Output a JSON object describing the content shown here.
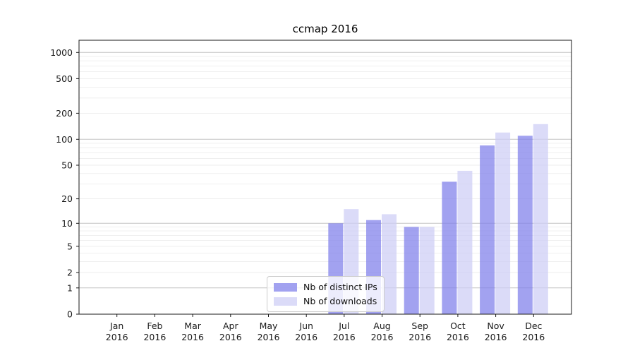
{
  "chart_data": {
    "type": "bar",
    "title": "ccmap 2016",
    "year_label": "2016",
    "categories": [
      "Jan",
      "Feb",
      "Mar",
      "Apr",
      "May",
      "Jun",
      "Jul",
      "Aug",
      "Sep",
      "Oct",
      "Nov",
      "Dec"
    ],
    "series": [
      {
        "name": "Nb of distinct IPs",
        "color": "rgba(128,128,235,0.73)",
        "values": [
          0,
          0,
          0,
          0,
          0,
          0,
          10,
          11,
          9,
          32,
          85,
          110
        ]
      },
      {
        "name": "Nb of downloads",
        "color": "rgba(206,206,246,0.73)",
        "values": [
          0,
          0,
          0,
          0,
          0,
          0,
          15,
          13,
          9,
          43,
          120,
          150
        ]
      }
    ],
    "xlabel": "",
    "ylabel": "",
    "yscale": "symlog",
    "ylim": [
      0,
      1380
    ],
    "yticks": [
      0,
      1,
      2,
      5,
      10,
      20,
      50,
      100,
      200,
      500,
      1000
    ],
    "grid_major": [
      1,
      10,
      100,
      1000
    ],
    "grid_minor": [
      2,
      3,
      4,
      5,
      6,
      7,
      8,
      9,
      20,
      30,
      40,
      50,
      60,
      70,
      80,
      90,
      200,
      300,
      400,
      500,
      600,
      700,
      800,
      900
    ],
    "grid": "on",
    "legend_position": "inside-lower-center",
    "colors": {
      "grid_major": "#c3c3c3",
      "grid_minor": "#ededed",
      "axis": "#1a1a1a",
      "tick_text": "#1a1a1a",
      "background": "#ffffff"
    }
  }
}
